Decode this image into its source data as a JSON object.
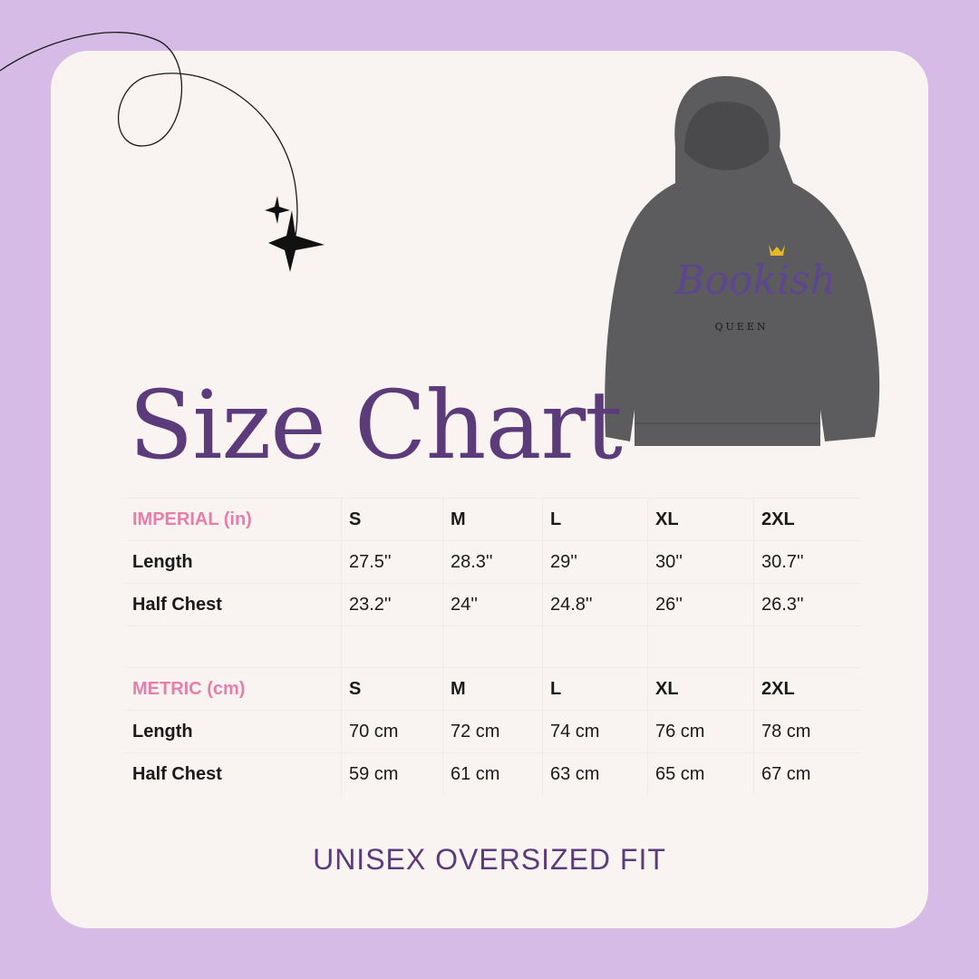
{
  "title": "Size Chart",
  "colors": {
    "background": "#d7bbe7",
    "card": "#f9f4f1",
    "title": "#5b3b7a",
    "unit_label": "#e87ea8"
  },
  "product_image": {
    "print_text": "Bookish",
    "print_subtext": "QUEEN",
    "garment_color": "#5c5c5e"
  },
  "imperial": {
    "header": [
      "IMPERIAL (in)",
      "S",
      "M",
      "L",
      "XL",
      "2XL"
    ],
    "rows": [
      [
        "Length",
        "27.5''",
        "28.3''",
        "29''",
        "30''",
        "30.7''"
      ],
      [
        "Half Chest",
        "23.2''",
        "24''",
        "24.8''",
        "26''",
        "26.3''"
      ]
    ]
  },
  "metric": {
    "header": [
      "METRIC (cm)",
      "S",
      "M",
      "L",
      "XL",
      "2XL"
    ],
    "rows": [
      [
        "Length",
        "70 cm",
        "72 cm",
        "74 cm",
        "76 cm",
        "78 cm"
      ],
      [
        "Half Chest",
        "59 cm",
        "61 cm",
        "63 cm",
        "65 cm",
        "67 cm"
      ]
    ]
  },
  "footer": "UNISEX OVERSIZED FIT"
}
